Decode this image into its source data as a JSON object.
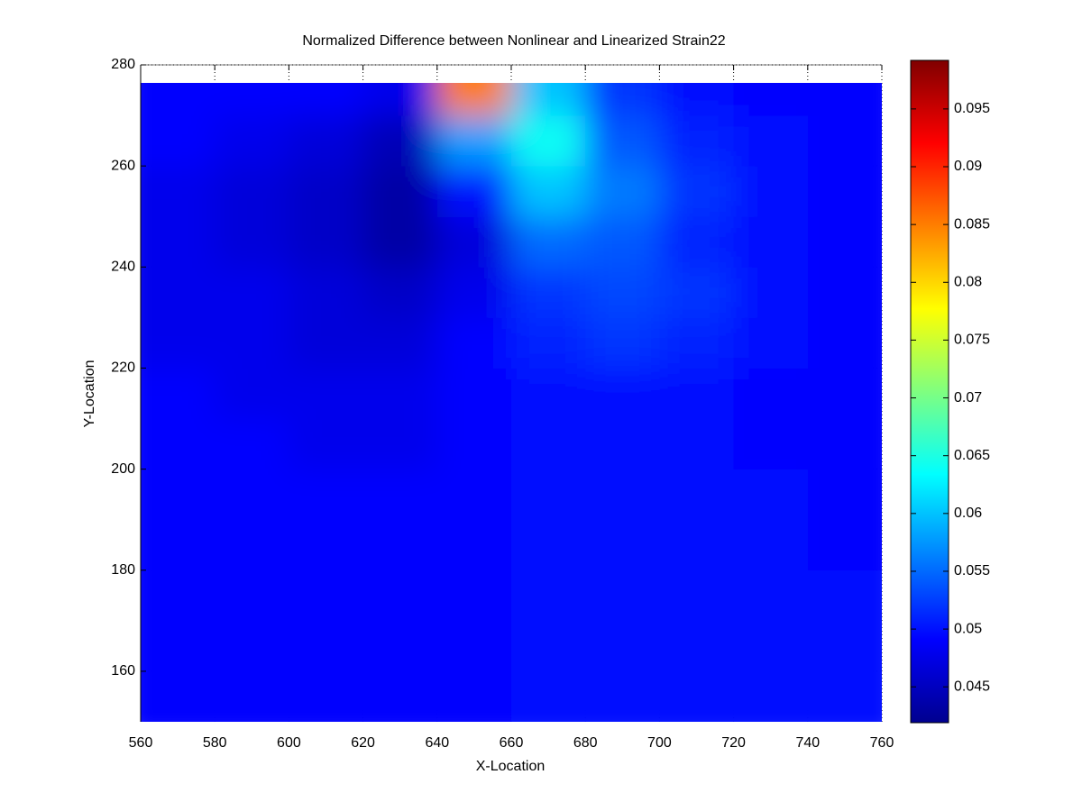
{
  "chart_data": {
    "type": "heatmap",
    "title": "Normalized Difference between Nonlinear and Linearized Strain22",
    "x_label": "X-Location",
    "y_label": "Y-Location",
    "x": [
      570,
      590,
      610,
      630,
      650,
      670,
      690,
      710,
      730,
      750
    ],
    "y": [
      155,
      165,
      175,
      185,
      195,
      205,
      215,
      225,
      235,
      245,
      255,
      265,
      275
    ],
    "z": [
      [
        0.049,
        0.049,
        0.049,
        0.049,
        0.049,
        0.05,
        0.05,
        0.05,
        0.05,
        0.05
      ],
      [
        0.049,
        0.049,
        0.049,
        0.049,
        0.049,
        0.05,
        0.05,
        0.05,
        0.05,
        0.05
      ],
      [
        0.049,
        0.049,
        0.049,
        0.049,
        0.049,
        0.05,
        0.05,
        0.05,
        0.05,
        0.05
      ],
      [
        0.049,
        0.049,
        0.049,
        0.049,
        0.049,
        0.05,
        0.05,
        0.05,
        0.05,
        0.049
      ],
      [
        0.049,
        0.049,
        0.049,
        0.049,
        0.049,
        0.05,
        0.05,
        0.05,
        0.05,
        0.049
      ],
      [
        0.049,
        0.049,
        0.048,
        0.048,
        0.049,
        0.05,
        0.05,
        0.05,
        0.049,
        0.049
      ],
      [
        0.049,
        0.048,
        0.048,
        0.048,
        0.049,
        0.05,
        0.05,
        0.05,
        0.049,
        0.049
      ],
      [
        0.048,
        0.048,
        0.047,
        0.047,
        0.049,
        0.051,
        0.052,
        0.051,
        0.05,
        0.049
      ],
      [
        0.048,
        0.048,
        0.047,
        0.046,
        0.048,
        0.052,
        0.053,
        0.052,
        0.05,
        0.049
      ],
      [
        0.048,
        0.047,
        0.046,
        0.044,
        0.047,
        0.055,
        0.054,
        0.051,
        0.05,
        0.049
      ],
      [
        0.048,
        0.047,
        0.046,
        0.044,
        0.05,
        0.06,
        0.056,
        0.052,
        0.05,
        0.049
      ],
      [
        0.049,
        0.048,
        0.047,
        0.045,
        0.058,
        0.064,
        0.054,
        0.051,
        0.05,
        0.049
      ],
      [
        0.049,
        0.049,
        0.049,
        0.048,
        0.085,
        0.06,
        0.052,
        0.05,
        0.049,
        0.049
      ]
    ],
    "xlim": [
      560,
      760
    ],
    "ylim": [
      150,
      280
    ],
    "xticks": [
      560,
      580,
      600,
      620,
      640,
      660,
      680,
      700,
      720,
      740,
      760
    ],
    "yticks": [
      160,
      180,
      200,
      220,
      240,
      260,
      280
    ],
    "clim": [
      0.0419,
      0.0992
    ],
    "cticks": [
      0.045,
      0.05,
      0.055,
      0.06,
      0.065,
      0.07,
      0.075,
      0.08,
      0.085,
      0.09,
      0.095
    ],
    "colormap": "jet",
    "grid": true
  }
}
